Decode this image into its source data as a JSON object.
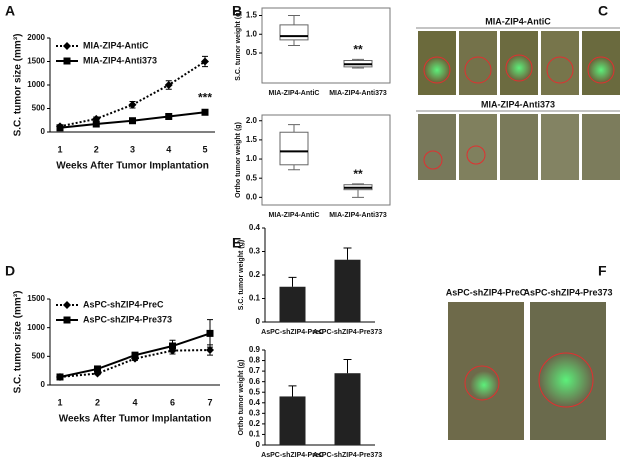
{
  "chart_data": [
    {
      "type": "line",
      "panel": "A",
      "ylabel": "S.C. tumor size (mm³)",
      "xlabel": "Weeks After Tumor Implantation",
      "categories": [
        "1",
        "2",
        "3",
        "4",
        "5"
      ],
      "ylim": [
        0,
        2000
      ],
      "yticks": [
        0,
        500,
        1000,
        1500,
        2000
      ],
      "annotation": "***",
      "series": [
        {
          "name": "MIA-ZIP4-AntiC",
          "color": "#000000",
          "style": "dotted",
          "marker": "diamond",
          "values": [
            120,
            280,
            580,
            1000,
            1500
          ],
          "errors": [
            30,
            40,
            70,
            90,
            110
          ]
        },
        {
          "name": "MIA-ZIP4-Anti373",
          "color": "#000000",
          "style": "solid",
          "marker": "square",
          "values": [
            90,
            170,
            240,
            330,
            420
          ],
          "errors": [
            20,
            20,
            30,
            30,
            40
          ]
        }
      ]
    },
    {
      "type": "box",
      "panel": "B",
      "ylabel": "S.C. tumor weight (g)",
      "categories": [
        "MIA-ZIP4-AntiC",
        "MIA-ZIP4-Anti373"
      ],
      "ylim": [
        -0.3,
        1.7
      ],
      "yticks": [
        0.5,
        {
          "value": 1,
          "label": "1.0"
        },
        1.5
      ],
      "annotation": "**",
      "boxes": [
        {
          "min": 0.7,
          "q1": 0.85,
          "median": 0.95,
          "q3": 1.25,
          "max": 1.5
        },
        {
          "min": 0.1,
          "q1": 0.13,
          "median": 0.2,
          "q3": 0.3,
          "max": 0.33
        }
      ]
    },
    {
      "type": "box",
      "ylabel": "Ortho tumor weight (g)",
      "categories": [
        "MIA-ZIP4-AntiC",
        "MIA-ZIP4-Anti373"
      ],
      "ylim": [
        -0.2,
        2.15
      ],
      "yticks": [
        {
          "value": 0,
          "label": "0.0"
        },
        0.5,
        {
          "value": 1,
          "label": "1.0"
        },
        1.5,
        {
          "value": 2,
          "label": "2.0"
        }
      ],
      "annotation": "**",
      "boxes": [
        {
          "min": 0.72,
          "q1": 0.85,
          "median": 1.2,
          "q3": 1.7,
          "max": 1.9
        },
        {
          "min": 0.0,
          "q1": 0.2,
          "median": 0.25,
          "q3": 0.33,
          "max": 0.35
        }
      ]
    },
    {
      "type": "line",
      "panel": "D",
      "ylabel": "S.C. tumor size (mm³)",
      "xlabel": "Weeks After Tumor Implantation",
      "categories": [
        "1",
        "2",
        "4",
        "6",
        "7"
      ],
      "ylim": [
        0,
        1500
      ],
      "yticks": [
        0,
        500,
        1000,
        1500
      ],
      "series": [
        {
          "name": "AsPC-shZIP4-PreC",
          "color": "#000000",
          "style": "dotted",
          "marker": "diamond",
          "values": [
            140,
            200,
            460,
            600,
            610
          ],
          "errors": [
            30,
            20,
            30,
            60,
            90
          ]
        },
        {
          "name": "AsPC-shZIP4-Pre373",
          "color": "#000000",
          "style": "solid",
          "marker": "square",
          "values": [
            140,
            280,
            520,
            680,
            900
          ],
          "errors": [
            40,
            30,
            50,
            100,
            240
          ]
        }
      ]
    },
    {
      "type": "bar",
      "panel": "E",
      "ylabel": "S.C. tumor weight (g)",
      "categories": [
        "AsPC-shZIP4-PreC",
        "AsPC-shZIP4-Pre373"
      ],
      "ylim": [
        0,
        0.4
      ],
      "yticks": [
        0,
        0.1,
        0.2,
        0.3,
        0.4
      ],
      "color": "#222222",
      "values": [
        0.15,
        0.265
      ],
      "errors": [
        0.04,
        0.05
      ]
    },
    {
      "type": "bar",
      "ylabel": "Ortho tumor weight (g)",
      "categories": [
        "AsPC-shZIP4-PreC",
        "AsPC-shZIP4-Pre373"
      ],
      "ylim": [
        0,
        0.9
      ],
      "yticks": [
        0,
        0.1,
        0.2,
        0.3,
        0.4,
        0.5,
        0.6,
        0.7,
        0.8,
        0.9
      ],
      "color": "#222222",
      "values": [
        0.46,
        0.68
      ],
      "errors": [
        0.1,
        0.13
      ]
    }
  ],
  "images": [
    {
      "panel": "C",
      "labels": [
        "MIA-ZIP4-AntiC",
        "MIA-ZIP4-Anti373"
      ]
    },
    {
      "panel": "F",
      "labels": [
        "AsPC-shZIP4-PreC",
        "AsPC-shZIP4-Pre373"
      ]
    }
  ]
}
